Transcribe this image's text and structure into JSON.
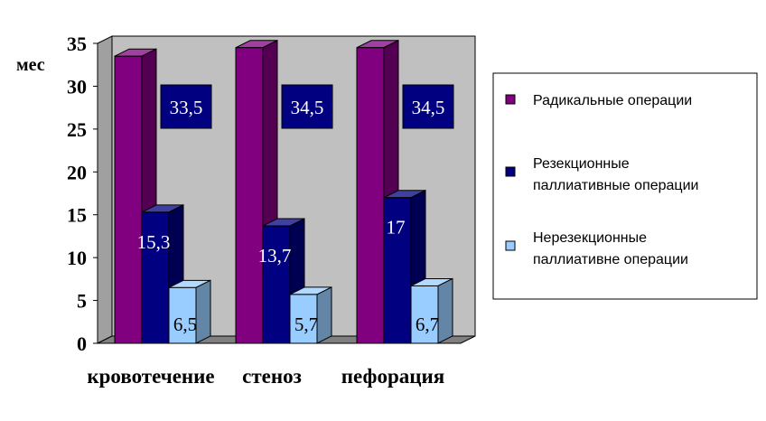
{
  "chart_data": {
    "type": "bar",
    "ylabel": "мес",
    "ylim": [
      0,
      35
    ],
    "yticks": [
      0,
      5,
      10,
      15,
      20,
      25,
      30,
      35
    ],
    "grid": false,
    "legend_position": "right",
    "categories": [
      "кровотечение",
      "стеноз",
      "пефорация"
    ],
    "series": [
      {
        "name": "Радикальные операции",
        "color": "#800080",
        "values": [
          33.5,
          34.5,
          34.5
        ],
        "labels": [
          "33,5",
          "34,5",
          "34,5"
        ]
      },
      {
        "name": "Резекционные паллиативные операции",
        "color": "#000080",
        "values": [
          15.3,
          13.7,
          17
        ],
        "labels": [
          "15,3",
          "13,7",
          "17"
        ]
      },
      {
        "name": "Нерезекционные паллиативне операции",
        "color": "#99ccff",
        "values": [
          6.5,
          5.7,
          6.7
        ],
        "labels": [
          "6,5",
          "5,7",
          "6,7"
        ]
      }
    ]
  }
}
